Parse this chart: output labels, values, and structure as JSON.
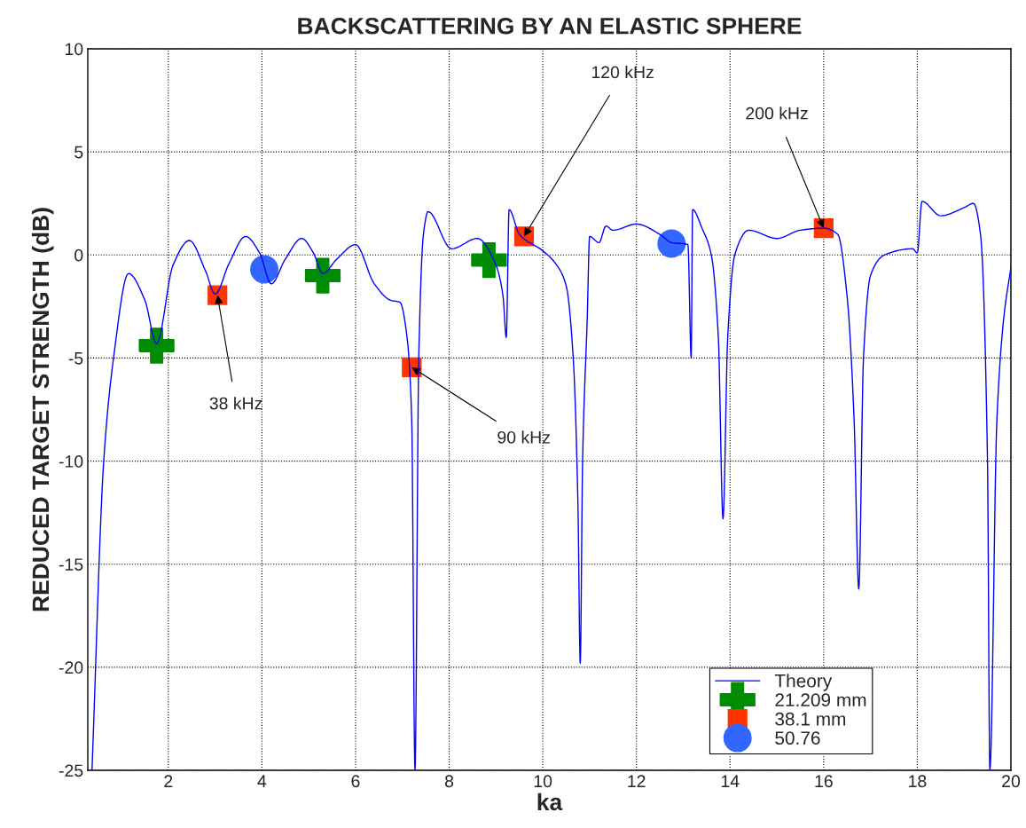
{
  "chart_data": {
    "type": "line",
    "title": "BACKSCATTERING BY AN ELASTIC SPHERE",
    "xlabel": "ka",
    "ylabel": "REDUCED TARGET STRENGTH (dB)",
    "xlim": [
      0.28,
      20
    ],
    "ylim": [
      -25,
      10
    ],
    "xticks": [
      2,
      4,
      6,
      8,
      10,
      12,
      14,
      16,
      18,
      20
    ],
    "yticks": [
      -25,
      -20,
      -15,
      -10,
      -5,
      0,
      5,
      10
    ],
    "grid": true,
    "legend": "bottom right",
    "series": [
      {
        "name": "Theory",
        "color": "#0000ff",
        "marker": "none",
        "line_style": "solid",
        "x": [
          0.37,
          0.62,
          0.83,
          1.15,
          1.5,
          1.75,
          2.1,
          2.45,
          2.8,
          3.0,
          3.3,
          3.65,
          3.95,
          4.2,
          4.5,
          4.85,
          5.1,
          5.3,
          5.6,
          6.0,
          6.4,
          6.75,
          6.95,
          7.1,
          7.2,
          7.27,
          7.35,
          7.45,
          7.55,
          8.05,
          8.6,
          9.0,
          9.15,
          9.22,
          9.28,
          9.5,
          10.0,
          10.3,
          10.5,
          10.65,
          10.75,
          10.8,
          10.85,
          10.95,
          11.0,
          11.2,
          11.35,
          11.5,
          12.0,
          12.5,
          12.75,
          13.1,
          13.17,
          13.2,
          13.4,
          13.6,
          13.75,
          13.85,
          13.95,
          14.1,
          14.4,
          15.0,
          15.5,
          16.0,
          16.3,
          16.5,
          16.65,
          16.75,
          16.85,
          17.0,
          17.3,
          17.9,
          18.0,
          18.1,
          18.5,
          19.0,
          19.2,
          19.35,
          19.5,
          19.55,
          19.7,
          19.85,
          20.0
        ],
        "values": [
          -25,
          -10,
          -5,
          -0.9,
          -2.2,
          -4.3,
          -0.5,
          0.7,
          -0.8,
          -1.9,
          -0.4,
          0.9,
          0.1,
          -1.4,
          -0.2,
          0.8,
          0.1,
          -0.9,
          -0.2,
          0.5,
          -1.4,
          -2.2,
          -2.3,
          -4,
          -8,
          -25,
          -5,
          1,
          2.1,
          0.3,
          0.8,
          -0.5,
          -2,
          -4,
          2.2,
          1.0,
          0.2,
          -0.5,
          -1.5,
          -5,
          -12,
          -19.8,
          -10,
          -3,
          0.9,
          0.6,
          1.4,
          1.2,
          1.5,
          1.0,
          0.6,
          0.5,
          -5,
          2.2,
          1.3,
          0,
          -4,
          -12.8,
          -4,
          0,
          1.2,
          0.8,
          1.2,
          1.3,
          1.0,
          -2,
          -8,
          -16.2,
          -5,
          -1,
          0,
          0.3,
          0.1,
          2.6,
          1.9,
          2.3,
          2.5,
          1,
          -10,
          -25,
          -8,
          -3,
          -0.6
        ]
      },
      {
        "name": "21.209 mm",
        "type": "scatter",
        "color": "#008c00",
        "marker": "cross",
        "x": [
          1.75,
          5.3,
          8.85
        ],
        "values": [
          -4.4,
          -1.0,
          -0.25
        ]
      },
      {
        "name": "38.1 mm",
        "type": "scatter",
        "color": "#ff3300",
        "marker": "square",
        "x": [
          3.05,
          7.2,
          9.6,
          16.0
        ],
        "values": [
          -1.95,
          -5.45,
          0.9,
          1.3
        ]
      },
      {
        "name": "50.76",
        "type": "scatter",
        "color": "#3366ff",
        "marker": "circle",
        "x": [
          4.05,
          12.75
        ],
        "values": [
          -0.7,
          0.55
        ]
      }
    ],
    "annotations": [
      {
        "text": "38 kHz",
        "x": 3.05,
        "y": -1.95
      },
      {
        "text": "90 kHz",
        "x": 7.2,
        "y": -5.45
      },
      {
        "text": "120 kHz",
        "x": 9.6,
        "y": 0.9
      },
      {
        "text": "200 kHz",
        "x": 16.0,
        "y": 1.3
      }
    ]
  }
}
